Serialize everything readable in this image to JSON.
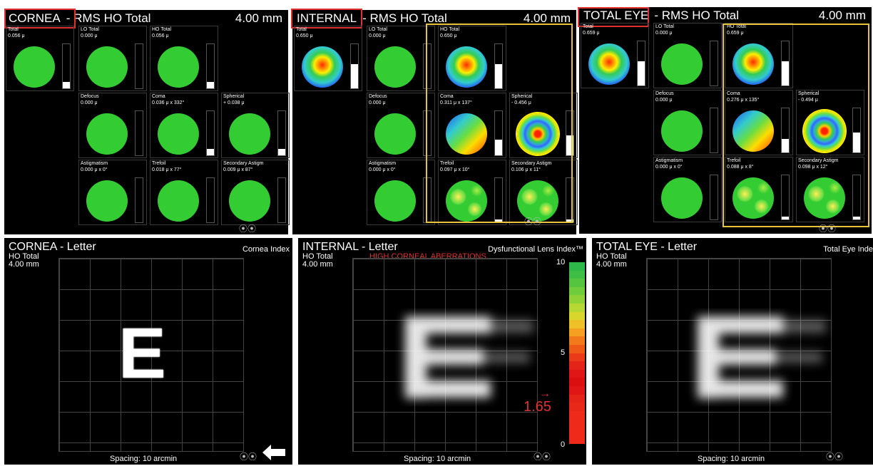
{
  "rms_panels": [
    {
      "title": "CORNEA",
      "subtitle": "- RMS HO Total",
      "diameter": "4.00 mm",
      "cells": [
        {
          "name": "Total",
          "value": "0.056 μ"
        },
        {
          "name": "LO Total",
          "value": "0.000 μ"
        },
        {
          "name": "HO Total",
          "value": "0.056 μ"
        },
        {
          "name": "Defocus",
          "value": "0.000 μ"
        },
        {
          "name": "Coma",
          "value": "0.036 μ x 332°"
        },
        {
          "name": "Spherical",
          "value": "+ 0.038 μ"
        },
        {
          "name": "Astigmatism",
          "value": "0.000 μ x 0°"
        },
        {
          "name": "Trefoil",
          "value": "0.018 μ x 77°"
        },
        {
          "name": "Secondary Astigm",
          "value": "0.009 μ x 87°"
        }
      ]
    },
    {
      "title": "INTERNAL",
      "subtitle": "- RMS HO Total",
      "diameter": "4.00 mm",
      "cells": [
        {
          "name": "Total",
          "value": "0.650 μ"
        },
        {
          "name": "LO Total",
          "value": "0.000 μ"
        },
        {
          "name": "HO Total",
          "value": "0.650 μ"
        },
        {
          "name": "Defocus",
          "value": "0.000 μ"
        },
        {
          "name": "Coma",
          "value": "0.311 μ x 137°"
        },
        {
          "name": "Spherical",
          "value": "- 0.456 μ"
        },
        {
          "name": "Astigmatism",
          "value": "0.000 μ x 0°"
        },
        {
          "name": "Trefoil",
          "value": "0.097 μ x 10°"
        },
        {
          "name": "Secondary Astigm",
          "value": "0.106 μ x 11°"
        }
      ]
    },
    {
      "title": "TOTAL EYE",
      "subtitle": "- RMS HO Total",
      "diameter": "4.00 mm",
      "cells": [
        {
          "name": "Total",
          "value": "0.659 μ"
        },
        {
          "name": "LO Total",
          "value": "0.000 μ"
        },
        {
          "name": "HO Total",
          "value": "0.659 μ"
        },
        {
          "name": "Defocus",
          "value": "0.000 μ"
        },
        {
          "name": "Coma",
          "value": "0.276 μ x 135°"
        },
        {
          "name": "Spherical",
          "value": "- 0.494 μ"
        },
        {
          "name": "Astigmatism",
          "value": "0.000 μ x 0°"
        },
        {
          "name": "Trefoil",
          "value": "0.088 μ x 8°"
        },
        {
          "name": "Secondary Astigm",
          "value": "0.098 μ x 12°"
        }
      ]
    }
  ],
  "letter_panels": [
    {
      "title": "CORNEA - Letter",
      "metric": "HO Total",
      "diameter": "4.00 mm",
      "index_label": "Cornea Index",
      "letter": "E",
      "spacing": "Spacing:  10 arcmin"
    },
    {
      "title": "INTERNAL - Letter",
      "metric": "HO Total",
      "diameter": "4.00 mm",
      "index_label": "Dysfunctional Lens Index™",
      "letter": "E",
      "spacing": "Spacing:  10 arcmin",
      "warning": "HIGH CORNEAL ABERRATIONS"
    },
    {
      "title": "TOTAL EYE - Letter",
      "metric": "HO Total",
      "diameter": "4.00 mm",
      "index_label": "Total Eye Inde",
      "letter": "E",
      "spacing": "Spacing:  10 arcmin"
    }
  ],
  "dli_scale": {
    "max_label": "10",
    "mid_label": "5",
    "min_label": "0",
    "value": "1.65",
    "value_num": 1.65
  },
  "colors": {
    "warning": "#e03030",
    "highlight_yellow": "#e8c23a",
    "disk_green": "#33cc33",
    "marker_red": "#e03030"
  }
}
